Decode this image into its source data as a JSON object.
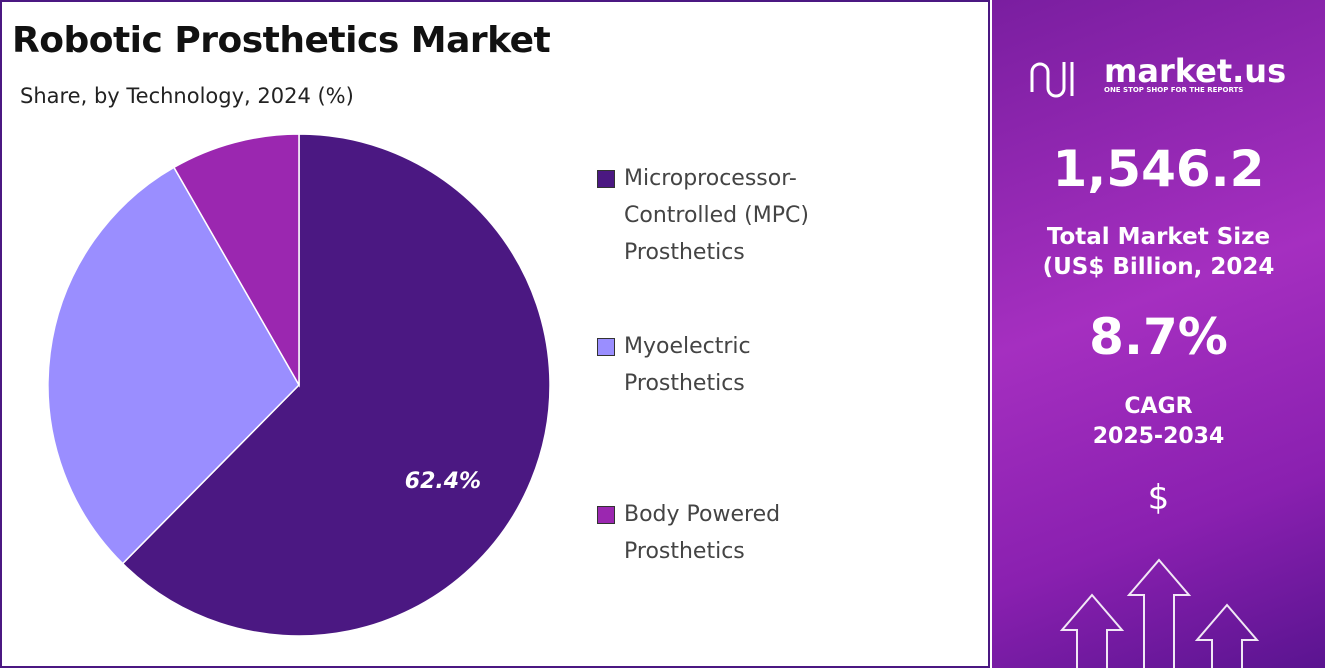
{
  "chart_data": {
    "type": "pie",
    "title": "Robotic Prosthetics Market",
    "subtitle": "Share, by Technology, 2024 (%)",
    "categories": [
      "Microprocessor-Controlled (MPC) Prosthetics",
      "Myoelectric Prosthetics",
      "Body Powered Prosthetics"
    ],
    "values": [
      62.4,
      29.3,
      8.3
    ],
    "value_labels": [
      "62.4%",
      null,
      null
    ],
    "colors": [
      "#4b1882",
      "#9a8eff",
      "#9b27b0"
    ],
    "legend": "right"
  },
  "panel": {
    "brand": "market.us",
    "tagline": "ONE STOP SHOP FOR THE REPORTS",
    "market_size": "1,546.2",
    "market_size_label_1": "Total Market Size",
    "market_size_label_2": "(US$ Billion, 2024",
    "cagr": "8.7%",
    "cagr_label_1": "CAGR",
    "cagr_label_2": "2025-2034",
    "currency": "$"
  }
}
